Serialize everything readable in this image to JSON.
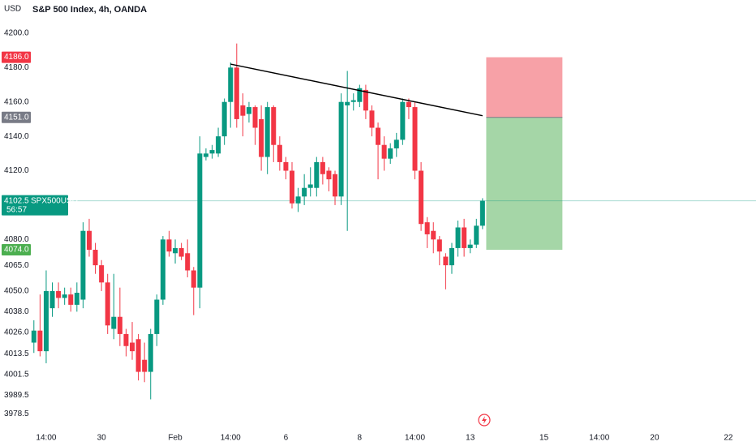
{
  "chart_data": {
    "type": "candlestick",
    "title": "S&P 500 Index, 4h, OANDA",
    "currency": "USD",
    "up_color": "#089981",
    "down_color": "#f23645",
    "ylim": [
      3969.3,
      4219.3
    ],
    "xlim": [
      -0.5,
      117.5
    ],
    "yticks": [
      {
        "value": 4200,
        "label": "4200.0"
      },
      {
        "value": 4180,
        "label": "4180.0"
      },
      {
        "value": 4160,
        "label": "4160.0"
      },
      {
        "value": 4140,
        "label": "4140.0"
      },
      {
        "value": 4120,
        "label": "4120.0"
      },
      {
        "value": 4080,
        "label": "4080.0"
      },
      {
        "value": 4065,
        "label": "4065.0"
      },
      {
        "value": 4050,
        "label": "4050.0"
      },
      {
        "value": 4038,
        "label": "4038.0"
      },
      {
        "value": 4026,
        "label": "4026.0"
      },
      4013.5,
      4001.5,
      3989.5,
      3978.5
    ],
    "xticks": [
      {
        "value": 2,
        "label": "14:00"
      },
      {
        "value": 11,
        "label": "30"
      },
      {
        "value": 23,
        "label": "Feb"
      },
      {
        "value": 32,
        "label": "14:00"
      },
      {
        "value": 41,
        "label": "6"
      },
      {
        "value": 53,
        "label": "8"
      },
      {
        "value": 62,
        "label": "14:00"
      },
      {
        "value": 71,
        "label": "13"
      },
      {
        "value": 83,
        "label": "15"
      },
      {
        "value": 92,
        "label": "14:00"
      },
      {
        "value": 101,
        "label": "20"
      },
      {
        "value": 113,
        "label": "22"
      }
    ],
    "open": [
      4020,
      4027,
      4015,
      4040,
      4050,
      4046,
      4048,
      4042,
      4045,
      4085,
      4074,
      4065,
      4055,
      4028,
      4035,
      4025,
      4020,
      4022,
      4010,
      4003,
      4025,
      4045,
      4080,
      4072,
      4075,
      4072,
      4062,
      4052,
      4128,
      4130,
      4130,
      4140,
      4160,
      4180,
      4158,
      4153,
      4157,
      4150,
      4128,
      4157,
      4135,
      4125,
      4120,
      4101,
      4105,
      4110,
      4110,
      4125,
      4120,
      4118,
      4105,
      4158,
      4160,
      4160,
      4167,
      4155,
      4145,
      4135,
      4127,
      4133,
      4138,
      4160,
      4157,
      4120,
      4090,
      4085,
      4080,
      4070,
      4065,
      4075,
      4087,
      4075,
      4077,
      4088
    ],
    "high": [
      4033,
      4048,
      4062,
      4055,
      4055,
      4052,
      4052,
      4055,
      4090,
      4092,
      4078,
      4068,
      4060,
      4060,
      4052,
      4028,
      4032,
      4025,
      4020,
      4028,
      4048,
      4082,
      4085,
      4080,
      4078,
      4080,
      4064,
      4140,
      4133,
      4135,
      4145,
      4162,
      4183,
      4194,
      4165,
      4160,
      4158,
      4158,
      4160,
      4158,
      4140,
      4128,
      4125,
      4110,
      4118,
      4122,
      4128,
      4128,
      4122,
      4120,
      4165,
      4178,
      4165,
      4170,
      4170,
      4158,
      4148,
      4140,
      4136,
      4142,
      4162,
      4162,
      4160,
      4125,
      4093,
      4090,
      4082,
      4072,
      4078,
      4091,
      4092,
      4080,
      4092,
      4104
    ],
    "low": [
      4014,
      4012,
      4008,
      4035,
      4040,
      4042,
      4038,
      4038,
      4040,
      4070,
      4060,
      4050,
      4025,
      4022,
      4018,
      4012,
      4010,
      3998,
      3997,
      3987,
      4018,
      4042,
      4070,
      4066,
      4068,
      4058,
      4036,
      4040,
      4126,
      4127,
      4128,
      4135,
      4145,
      4145,
      4140,
      4148,
      4135,
      4120,
      4118,
      4125,
      4120,
      4115,
      4098,
      4096,
      4100,
      4105,
      4105,
      4112,
      4108,
      4100,
      4100,
      4085,
      4155,
      4157,
      4150,
      4140,
      4115,
      4120,
      4124,
      4128,
      4135,
      4150,
      4115,
      4085,
      4075,
      4072,
      4065,
      4051,
      4060,
      4070,
      4070,
      4072,
      4075,
      4086
    ],
    "close": [
      4027,
      4015,
      4050,
      4050,
      4046,
      4048,
      4042,
      4049,
      4085,
      4074,
      4065,
      4055,
      4030,
      4035,
      4025,
      4018,
      4015,
      4003,
      4003,
      4025,
      4045,
      4080,
      4073,
      4075,
      4070,
      4062,
      4052,
      4130,
      4130,
      4132,
      4140,
      4160,
      4180,
      4150,
      4152,
      4157,
      4145,
      4128,
      4157,
      4135,
      4125,
      4120,
      4101,
      4105,
      4110,
      4112,
      4125,
      4118,
      4115,
      4105,
      4160,
      4160,
      4161,
      4168,
      4155,
      4145,
      4135,
      4127,
      4133,
      4138,
      4160,
      4157,
      4120,
      4089,
      4083,
      4080,
      4073,
      4065,
      4075,
      4087,
      4075,
      4077,
      4088,
      4102.5
    ],
    "trendline": {
      "x": [
        32,
        73
      ],
      "y": [
        4182,
        4152
      ]
    },
    "position": {
      "x": [
        74,
        86
      ],
      "stop": 4186,
      "entry": 4151,
      "target": 4074,
      "stop_color": "#f7a1a7",
      "target_color": "#a5d6a7"
    },
    "last_price": {
      "value": 4102.5,
      "label": "4102.5",
      "symbol": "SPX500USD",
      "countdown": "56:57",
      "color": "#089981"
    },
    "price_labels": [
      {
        "value": 4186,
        "label": "4186.0",
        "color": "#f23645"
      },
      {
        "value": 4151,
        "label": "4151.0",
        "color": "#787b86"
      },
      {
        "value": 4074,
        "label": "4074.0",
        "color": "#4caf50"
      }
    ]
  }
}
